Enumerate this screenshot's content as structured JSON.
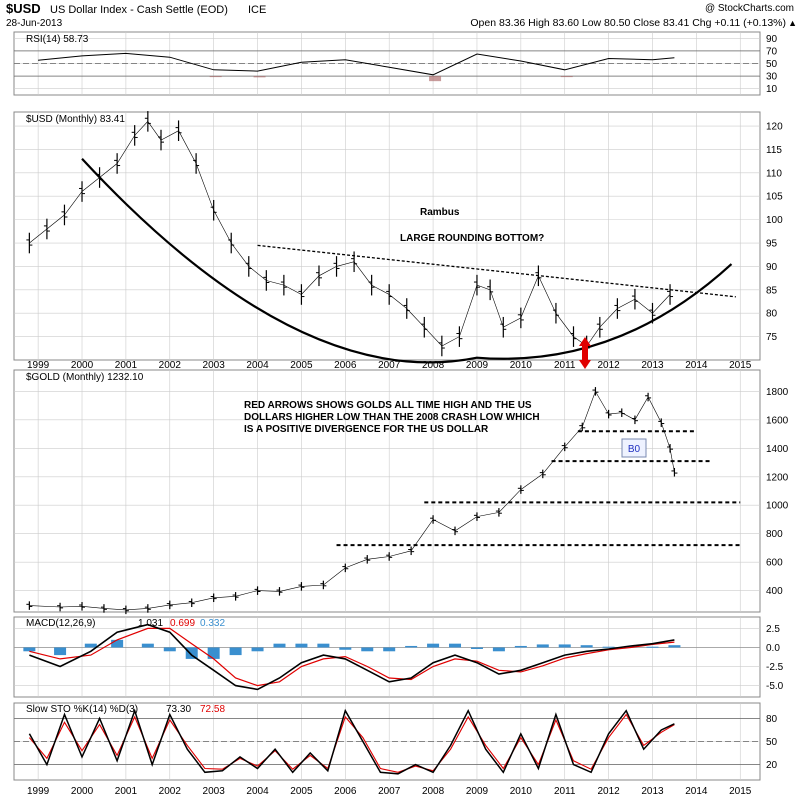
{
  "header": {
    "symbol": "$USD",
    "name": "US Dollar Index - Cash Settle (EOD)",
    "exchange": "ICE",
    "watermark": "@ StockCharts.com",
    "date": "28-Jun-2013",
    "ohlc": "Open 83.36   High 83.60   Low 80.50   Close 83.41   Chg +0.11 (+0.13%)",
    "ohlc_arrow": "▲"
  },
  "chart_data": [
    {
      "type": "line",
      "panel": "rsi",
      "title": "RSI(14) 58.73",
      "ylim": [
        0,
        100
      ],
      "y_ticks": [
        10,
        30,
        50,
        70,
        90
      ],
      "reference_lines": [
        30,
        50,
        70
      ],
      "x": [
        1999,
        2000,
        2001,
        2002,
        2003,
        2004,
        2005,
        2006,
        2007,
        2008,
        2009,
        2010,
        2011,
        2012,
        2013,
        2013.5
      ],
      "values": [
        55,
        62,
        66,
        60,
        40,
        38,
        52,
        56,
        44,
        32,
        65,
        54,
        40,
        58,
        56,
        59
      ]
    },
    {
      "type": "line",
      "panel": "usd",
      "title": "$USD (Monthly) 83.41",
      "ylim": [
        70,
        123
      ],
      "y_ticks": [
        75,
        80,
        85,
        90,
        95,
        100,
        105,
        110,
        115,
        120
      ],
      "x": [
        1998.8,
        1999.2,
        1999.6,
        2000,
        2000.4,
        2000.8,
        2001.2,
        2001.5,
        2001.8,
        2002.2,
        2002.6,
        2003,
        2003.4,
        2003.8,
        2004.2,
        2004.6,
        2005,
        2005.4,
        2005.8,
        2006.2,
        2006.6,
        2007,
        2007.4,
        2007.8,
        2008.2,
        2008.6,
        2009,
        2009.3,
        2009.6,
        2010,
        2010.4,
        2010.8,
        2011.2,
        2011.5,
        2011.8,
        2012.2,
        2012.6,
        2013,
        2013.4
      ],
      "values": [
        95,
        98,
        101,
        106,
        109,
        112,
        118,
        121,
        117,
        119,
        112,
        102,
        95,
        90,
        87,
        86,
        84,
        88,
        90,
        91,
        86,
        84,
        81,
        77,
        73,
        75,
        86,
        85,
        77,
        79,
        88,
        80,
        75,
        73,
        77,
        81,
        83,
        80,
        84
      ],
      "annotations": [
        "Rambus",
        "LARGE ROUNDING BOTTOM?"
      ],
      "resistance_line": {
        "from": [
          2004,
          94.5
        ],
        "to": [
          2014.9,
          83.5
        ]
      },
      "rounding_bottom": {
        "start": [
          2000,
          113
        ],
        "bottom": [
          2009,
          70.5
        ],
        "end": [
          2014.8,
          90.5
        ]
      }
    },
    {
      "type": "line",
      "panel": "gold",
      "title": "$GOLD (Monthly) 1232.10",
      "ylim": [
        250,
        1950
      ],
      "y_ticks": [
        400,
        600,
        800,
        1000,
        1200,
        1400,
        1600,
        1800
      ],
      "x": [
        1998.8,
        1999.5,
        2000,
        2000.5,
        2001,
        2001.5,
        2002,
        2002.5,
        2003,
        2003.5,
        2004,
        2004.5,
        2005,
        2005.5,
        2006,
        2006.5,
        2007,
        2007.5,
        2008,
        2008.5,
        2009,
        2009.5,
        2010,
        2010.5,
        2011,
        2011.4,
        2011.7,
        2012,
        2012.3,
        2012.6,
        2012.9,
        2013.2,
        2013.4,
        2013.5
      ],
      "values": [
        295,
        285,
        290,
        275,
        265,
        275,
        300,
        315,
        350,
        360,
        400,
        395,
        430,
        440,
        560,
        620,
        640,
        680,
        900,
        820,
        920,
        950,
        1110,
        1220,
        1410,
        1550,
        1800,
        1640,
        1650,
        1600,
        1760,
        1580,
        1400,
        1232
      ],
      "annotations": [
        "RED ARROWS SHOWS GOLDS ALL TIME HIGH AND THE US",
        "DOLLARS HIGHER LOW THAN THE 2008 CRASH LOW WHICH",
        "IS A POSITIVE DIVERGENCE FOR THE US DOLLAR"
      ],
      "label_box": "B0",
      "support_lines": [
        {
          "from": 2005.8,
          "to": 2015,
          "level": 720
        },
        {
          "from": 2007.8,
          "to": 2015,
          "level": 1020
        },
        {
          "from": 2010.7,
          "to": 2014.3,
          "level": 1310
        },
        {
          "from": 2011.3,
          "to": 2014,
          "level": 1520
        }
      ]
    },
    {
      "type": "line",
      "panel": "macd",
      "title": "MACD(12,26,9)",
      "value_macd": "1.031",
      "value_signal": "0.699",
      "value_hist": "0.332",
      "ylim": [
        -6.5,
        4
      ],
      "y_ticks": [
        -5.0,
        -2.5,
        0.0,
        2.5
      ],
      "x": [
        1998.8,
        1999.5,
        2000.2,
        2000.8,
        2001.5,
        2002,
        2002.5,
        2003,
        2003.5,
        2004,
        2004.5,
        2005,
        2005.5,
        2006,
        2006.5,
        2007,
        2007.5,
        2008,
        2008.5,
        2009,
        2009.5,
        2010,
        2010.5,
        2011,
        2011.5,
        2012,
        2012.5,
        2013,
        2013.5
      ],
      "series": [
        {
          "name": "MACD",
          "values": [
            -1,
            -2.5,
            -0.5,
            2,
            3,
            2,
            -1,
            -3,
            -5,
            -5.5,
            -4,
            -2,
            -1,
            -1.5,
            -3,
            -4.5,
            -4,
            -2,
            -1,
            -2,
            -3.5,
            -3,
            -2,
            -1,
            -0.5,
            -0.2,
            0.2,
            0.5,
            1.0
          ]
        },
        {
          "name": "Signal",
          "values": [
            -0.5,
            -1.5,
            -1,
            1,
            2.5,
            2.5,
            0.5,
            -1.5,
            -4,
            -5,
            -4.5,
            -2.5,
            -1.5,
            -1.2,
            -2.5,
            -4,
            -4.2,
            -2.5,
            -1.5,
            -1.8,
            -3,
            -3.2,
            -2.4,
            -1.4,
            -0.8,
            -0.3,
            0,
            0.4,
            0.7
          ]
        }
      ]
    },
    {
      "type": "line",
      "panel": "sto",
      "title": "Slow STO %K(14) %D(3)",
      "value_k": "73.30",
      "value_d": "72.58",
      "ylim": [
        0,
        100
      ],
      "y_ticks": [
        20,
        50,
        80
      ],
      "reference_lines": [
        20,
        50,
        80
      ],
      "x": [
        1998.8,
        1999.2,
        1999.6,
        2000,
        2000.4,
        2000.8,
        2001.2,
        2001.6,
        2002,
        2002.4,
        2002.8,
        2003.2,
        2003.6,
        2004,
        2004.4,
        2004.8,
        2005.2,
        2005.6,
        2006,
        2006.4,
        2006.8,
        2007.2,
        2007.6,
        2008,
        2008.4,
        2008.8,
        2009.2,
        2009.6,
        2010,
        2010.4,
        2010.8,
        2011.2,
        2011.6,
        2012,
        2012.4,
        2012.8,
        2013.2,
        2013.5
      ],
      "series": [
        {
          "name": "%K",
          "values": [
            60,
            20,
            85,
            30,
            80,
            25,
            90,
            20,
            85,
            40,
            10,
            12,
            30,
            15,
            40,
            10,
            35,
            12,
            90,
            50,
            10,
            8,
            20,
            10,
            45,
            90,
            40,
            10,
            60,
            15,
            85,
            20,
            10,
            60,
            90,
            40,
            65,
            73
          ]
        },
        {
          "name": "%D",
          "values": [
            55,
            28,
            75,
            38,
            72,
            32,
            82,
            28,
            78,
            45,
            15,
            14,
            28,
            18,
            38,
            14,
            32,
            15,
            82,
            55,
            15,
            10,
            18,
            12,
            40,
            82,
            45,
            15,
            55,
            20,
            78,
            25,
            14,
            55,
            85,
            45,
            62,
            72
          ]
        }
      ]
    }
  ],
  "x_axis": {
    "labels": [
      "1999",
      "2000",
      "2001",
      "2002",
      "2003",
      "2004",
      "2005",
      "2006",
      "2007",
      "2008",
      "2009",
      "2010",
      "2011",
      "2012",
      "2013",
      "2014",
      "2015"
    ]
  },
  "colors": {
    "up": "#000000",
    "signal": "#e00000",
    "hist": "#3a8fcf",
    "rsi_fill": "#b07070",
    "arrow": "#e00000",
    "grid": "#cccccc"
  }
}
